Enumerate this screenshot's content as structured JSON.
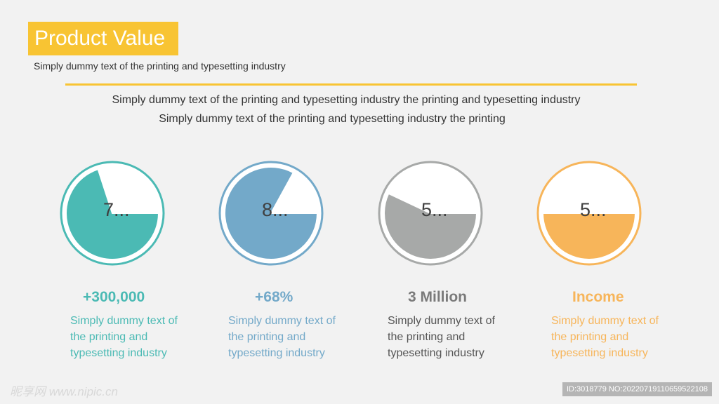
{
  "title": "Product Value",
  "subtitle": "Simply dummy text of the printing and typesetting industry",
  "intro": {
    "line1": "Simply dummy text of the printing and typesetting industry the printing and typesetting industry",
    "line2": "Simply dummy text of the printing and typesetting industry the printing"
  },
  "colors": {
    "accent": "#f8c433",
    "background": "#f2f2f2",
    "text": "#333333"
  },
  "items": [
    {
      "gauge_label": "7...",
      "fill_fraction": 0.7,
      "color": "#4bbab4",
      "stat": "+300,000",
      "description": "Simply dummy text of the printing and typesetting industry"
    },
    {
      "gauge_label": "8...",
      "fill_fraction": 0.83,
      "color": "#73a9c9",
      "stat": "+68%",
      "description": "Simply dummy text of the printing and typesetting industry"
    },
    {
      "gauge_label": "5...",
      "fill_fraction": 0.57,
      "color": "#a7a9a8",
      "stat": "3 Million",
      "description": "Simply dummy text of the printing and typesetting industry"
    },
    {
      "gauge_label": "5...",
      "fill_fraction": 0.5,
      "color": "#f7b55a",
      "stat": "Income",
      "description": "Simply dummy text of the printing and typesetting industry"
    }
  ],
  "watermark": {
    "left": "昵享网 www.nipic.cn",
    "right": "ID:3018779 NO:20220719110659522108"
  }
}
